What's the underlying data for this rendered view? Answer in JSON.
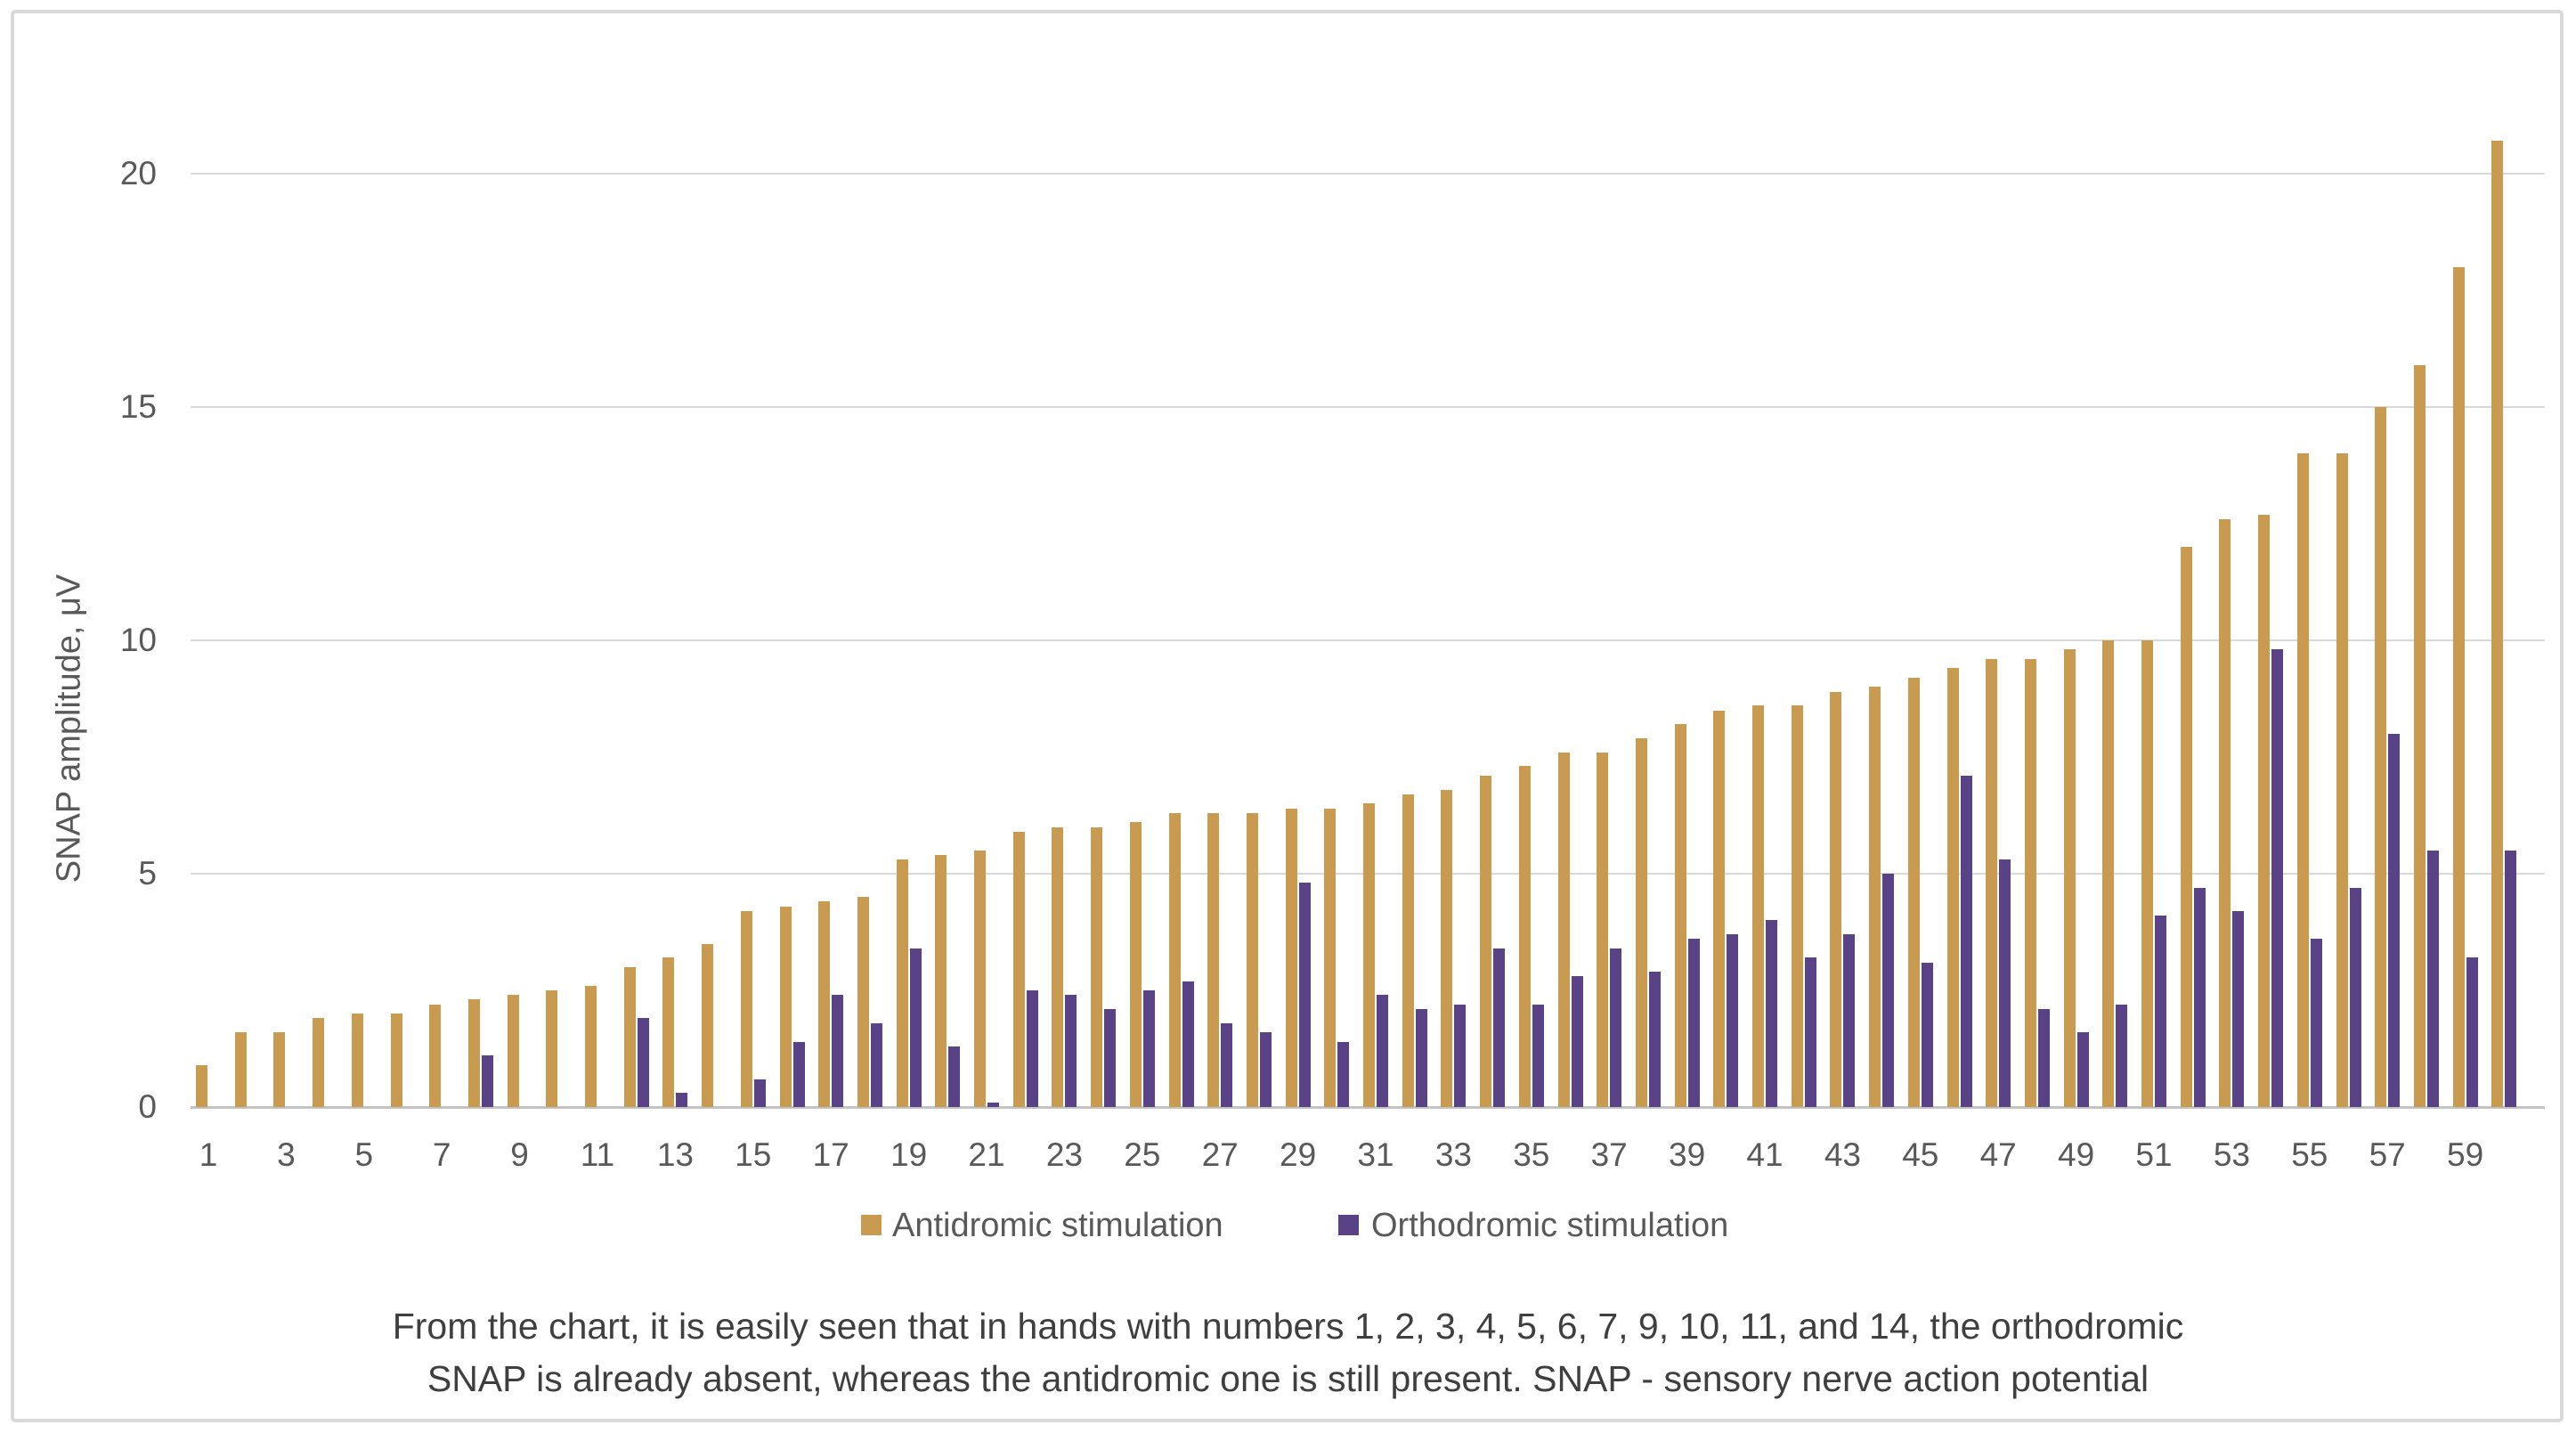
{
  "figure": {
    "y_axis_title": "SNAP amplitude, μV",
    "caption_line1": "From the chart, it is easily seen that in hands with numbers 1, 2, 3, 4, 5, 6, 7, 9, 10, 11, and 14, the orthodromic",
    "caption_line2": "SNAP is already absent, whereas the antidromic one is still present. SNAP - sensory nerve action potential",
    "colors": {
      "antidromic": "#C99B50",
      "orthodromic": "#5A4287",
      "gridline": "#D9D9D9",
      "axis_line": "#C3C3C3",
      "tick_text": "#595959",
      "caption_text": "#3F3F3F",
      "border": "#D9D9D9"
    }
  },
  "legend": {
    "items": [
      {
        "label": "Antidromic stimulation",
        "color": "#C99B50"
      },
      {
        "label": "Orthodromic stimulation",
        "color": "#5A4287"
      }
    ]
  },
  "chart_data": {
    "type": "bar",
    "title": "",
    "xlabel": "",
    "ylabel": "SNAP amplitude, μV",
    "ylim": [
      0,
      20
    ],
    "y_ticks": [
      0,
      5,
      10,
      15,
      20
    ],
    "grid": "horizontal",
    "legend_position": "bottom",
    "categories": [
      1,
      2,
      3,
      4,
      5,
      6,
      7,
      8,
      9,
      10,
      11,
      12,
      13,
      14,
      15,
      16,
      17,
      18,
      19,
      20,
      21,
      22,
      23,
      24,
      25,
      26,
      27,
      28,
      29,
      30,
      31,
      32,
      33,
      34,
      35,
      36,
      37,
      38,
      39,
      40,
      41,
      42,
      43,
      44,
      45,
      46,
      47,
      48,
      49,
      50,
      51,
      52,
      53,
      54,
      55,
      56,
      57,
      58,
      59,
      60
    ],
    "x_tick_labels": [
      "1",
      "3",
      "5",
      "7",
      "9",
      "11",
      "13",
      "15",
      "17",
      "19",
      "21",
      "23",
      "25",
      "27",
      "29",
      "31",
      "33",
      "35",
      "37",
      "39",
      "41",
      "43",
      "45",
      "47",
      "49",
      "51",
      "53",
      "55",
      "57",
      "59"
    ],
    "series": [
      {
        "name": "Antidromic stimulation",
        "color": "#C99B50",
        "values": [
          0.9,
          1.6,
          1.6,
          1.9,
          2.0,
          2.0,
          2.2,
          2.3,
          2.4,
          2.5,
          2.6,
          3.0,
          3.2,
          3.5,
          4.2,
          4.3,
          4.4,
          4.5,
          5.3,
          5.4,
          5.5,
          5.9,
          6.0,
          6.0,
          6.1,
          6.3,
          6.3,
          6.3,
          6.4,
          6.4,
          6.5,
          6.7,
          6.8,
          7.1,
          7.3,
          7.6,
          7.6,
          7.9,
          8.2,
          8.5,
          8.6,
          8.6,
          8.9,
          9.0,
          9.2,
          9.4,
          9.6,
          9.6,
          9.8,
          10.0,
          10.0,
          12.0,
          12.6,
          12.7,
          14.0,
          14.0,
          15.0,
          15.9,
          18.0,
          20.7
        ]
      },
      {
        "name": "Orthodromic stimulation",
        "color": "#5A4287",
        "values": [
          0,
          0,
          0,
          0,
          0,
          0,
          0,
          1.1,
          0,
          0,
          0,
          1.9,
          0.3,
          0,
          0.6,
          1.4,
          2.4,
          1.8,
          3.4,
          1.3,
          0.1,
          2.5,
          2.4,
          2.1,
          2.5,
          2.7,
          1.8,
          1.6,
          4.8,
          1.4,
          2.4,
          2.1,
          2.2,
          3.4,
          2.2,
          2.8,
          3.4,
          2.9,
          3.6,
          3.7,
          4.0,
          3.2,
          3.7,
          5.0,
          3.1,
          7.1,
          5.3,
          2.1,
          1.6,
          2.2,
          4.1,
          4.7,
          4.2,
          9.8,
          3.6,
          4.7,
          8.0,
          5.5,
          3.2,
          5.5
        ]
      }
    ]
  }
}
